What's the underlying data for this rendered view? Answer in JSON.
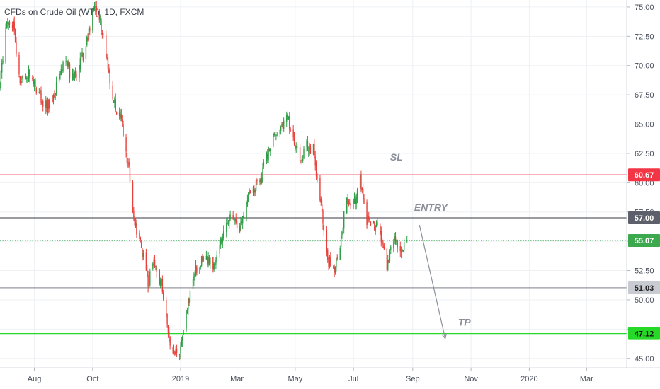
{
  "chart_data": {
    "type": "candlestick",
    "title": "CFDs on Crude Oil (WTI), 1D, FXCM",
    "x_tick_labels": [
      "Aug",
      "Oct",
      "2019",
      "Mar",
      "May",
      "Jul",
      "Sep",
      "Nov",
      "2020",
      "Mar"
    ],
    "x_tick_dates": [
      "2018-08-01",
      "2018-10-01",
      "2019-01-01",
      "2019-03-01",
      "2019-05-01",
      "2019-07-01",
      "2019-09-01",
      "2019-11-01",
      "2020-01-01",
      "2020-03-01"
    ],
    "x_range": [
      "2018-06-26",
      "2020-04-12"
    ],
    "y_tick_labels": [
      "45.00",
      "47.50",
      "50.00",
      "52.50",
      "55.00",
      "57.50",
      "60.00",
      "62.50",
      "65.00",
      "67.50",
      "70.00",
      "72.50",
      "75.00"
    ],
    "y_ticks": [
      45,
      47.5,
      50,
      52.5,
      55,
      57.5,
      60,
      62.5,
      65,
      67.5,
      70,
      72.5,
      75
    ],
    "ylim": [
      44.2,
      75.6
    ],
    "grid": true,
    "colors": {
      "up": "#2e9e46",
      "down": "#e8413c",
      "grid": "#eef0f4",
      "axis_text": "#4a4f5c"
    },
    "close_path": [
      [
        "2018-06-26",
        68.4
      ],
      [
        "2018-07-03",
        74.2
      ],
      [
        "2018-07-10",
        73.6
      ],
      [
        "2018-07-17",
        68.6
      ],
      [
        "2018-07-24",
        69.3
      ],
      [
        "2018-07-31",
        68.8
      ],
      [
        "2018-08-07",
        67.5
      ],
      [
        "2018-08-14",
        66.4
      ],
      [
        "2018-08-21",
        67.3
      ],
      [
        "2018-08-28",
        69.6
      ],
      [
        "2018-09-04",
        70.1
      ],
      [
        "2018-09-11",
        68.7
      ],
      [
        "2018-09-18",
        70.3
      ],
      [
        "2018-09-25",
        71.9
      ],
      [
        "2018-10-03",
        75.3
      ],
      [
        "2018-10-10",
        73.2
      ],
      [
        "2018-10-17",
        69.7
      ],
      [
        "2018-10-24",
        66.8
      ],
      [
        "2018-10-31",
        65.3
      ],
      [
        "2018-11-07",
        61.6
      ],
      [
        "2018-11-14",
        56.3
      ],
      [
        "2018-11-21",
        54.5
      ],
      [
        "2018-11-28",
        51.4
      ],
      [
        "2018-12-05",
        53.2
      ],
      [
        "2018-12-12",
        51.2
      ],
      [
        "2018-12-19",
        47.2
      ],
      [
        "2018-12-24",
        45.1
      ],
      [
        "2018-12-31",
        45.6
      ],
      [
        "2019-01-07",
        48.9
      ],
      [
        "2019-01-14",
        51.9
      ],
      [
        "2019-01-21",
        53.1
      ],
      [
        "2019-01-28",
        53.7
      ],
      [
        "2019-02-04",
        52.7
      ],
      [
        "2019-02-11",
        54.6
      ],
      [
        "2019-02-18",
        56.8
      ],
      [
        "2019-02-25",
        57.0
      ],
      [
        "2019-03-04",
        56.2
      ],
      [
        "2019-03-11",
        58.2
      ],
      [
        "2019-03-18",
        59.6
      ],
      [
        "2019-03-25",
        60.1
      ],
      [
        "2019-04-01",
        62.1
      ],
      [
        "2019-04-08",
        63.9
      ],
      [
        "2019-04-15",
        64.2
      ],
      [
        "2019-04-22",
        65.9
      ],
      [
        "2019-04-29",
        63.6
      ],
      [
        "2019-05-06",
        62.1
      ],
      [
        "2019-05-13",
        63.1
      ],
      [
        "2019-05-20",
        62.8
      ],
      [
        "2019-05-27",
        58.8
      ],
      [
        "2019-06-03",
        53.6
      ],
      [
        "2019-06-10",
        52.4
      ],
      [
        "2019-06-17",
        54.8
      ],
      [
        "2019-06-24",
        58.9
      ],
      [
        "2019-07-01",
        58.1
      ],
      [
        "2019-07-08",
        60.2
      ],
      [
        "2019-07-15",
        56.8
      ],
      [
        "2019-07-22",
        56.5
      ],
      [
        "2019-07-29",
        55.8
      ],
      [
        "2019-08-05",
        52.6
      ],
      [
        "2019-08-12",
        55.1
      ],
      [
        "2019-08-19",
        54.2
      ],
      [
        "2019-08-26",
        55.1
      ]
    ],
    "horizontal_levels": [
      {
        "name": "sl-line",
        "price": 60.67,
        "label": "60.67",
        "color": "#f23645",
        "text_color": "#ffffff"
      },
      {
        "name": "entry-line",
        "price": 57.0,
        "label": "57.00",
        "color": "#5d606b",
        "text_color": "#ffffff"
      },
      {
        "name": "last-price-line",
        "price": 55.07,
        "label": "55.07",
        "color": "#3ca94e",
        "text_color": "#ffffff",
        "dotted": true
      },
      {
        "name": "support-line",
        "price": 51.03,
        "label": "51.03",
        "color": "#9598a1",
        "text_color": "#222222",
        "badge_color": "#c8cbd2"
      },
      {
        "name": "tp-line",
        "price": 47.12,
        "label": "47.12",
        "color": "#26d926",
        "text_color": "#111111"
      }
    ],
    "annotations": [
      {
        "name": "sl-label",
        "text": "SL",
        "date": "2019-08-15",
        "price": 61.9
      },
      {
        "name": "entry-label",
        "text": "ENTRY",
        "date": "2019-09-20",
        "price": 57.6
      },
      {
        "name": "tp-label",
        "text": "TP",
        "date": "2019-10-25",
        "price": 47.8
      }
    ],
    "arrow": {
      "from_date": "2019-09-08",
      "from_price": 56.4,
      "to_date": "2019-10-05",
      "to_price": 46.7
    }
  }
}
